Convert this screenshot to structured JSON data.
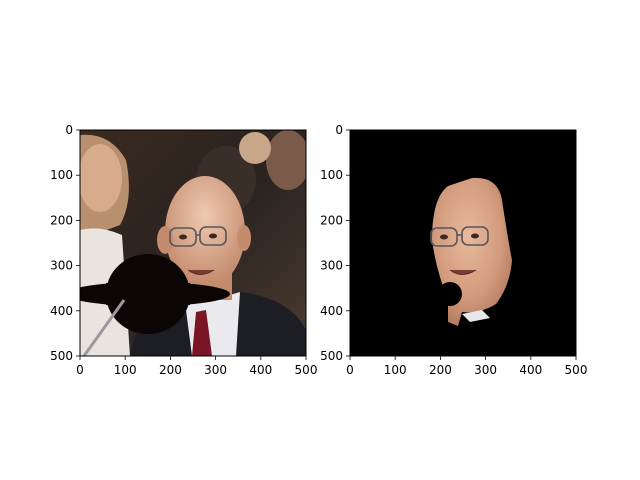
{
  "chart_data": [
    {
      "type": "image",
      "panel": "left",
      "content": "photo of a bald man with glasses in a dark suit and red tie; an occluding dark bowler-hat shape covers the lower-left area",
      "xlim": [
        0,
        500
      ],
      "ylim": [
        500,
        0
      ],
      "xticks": [
        0,
        100,
        200,
        300,
        400,
        500
      ],
      "yticks": [
        0,
        100,
        200,
        300,
        400,
        500
      ],
      "xtick_labels": [
        "0",
        "100",
        "200",
        "300",
        "400",
        "500"
      ],
      "ytick_labels": [
        "0",
        "100",
        "200",
        "300",
        "400",
        "500"
      ]
    },
    {
      "type": "image",
      "panel": "right",
      "content": "face segmentation result: only the man's face region visible on a black background",
      "xlim": [
        0,
        500
      ],
      "ylim": [
        500,
        0
      ],
      "xticks": [
        0,
        100,
        200,
        300,
        400,
        500
      ],
      "yticks": [
        0,
        100,
        200,
        300,
        400,
        500
      ],
      "xtick_labels": [
        "0",
        "100",
        "200",
        "300",
        "400",
        "500"
      ],
      "ytick_labels": [
        "0",
        "100",
        "200",
        "300",
        "400",
        "500"
      ]
    }
  ],
  "colors": {
    "background": "#ffffff",
    "axis": "#000000",
    "mask_background": "#000000",
    "skin": "#d9a488",
    "suit": "#1d1e24",
    "tie": "#7a1526",
    "shirt": "#eaeaee"
  }
}
